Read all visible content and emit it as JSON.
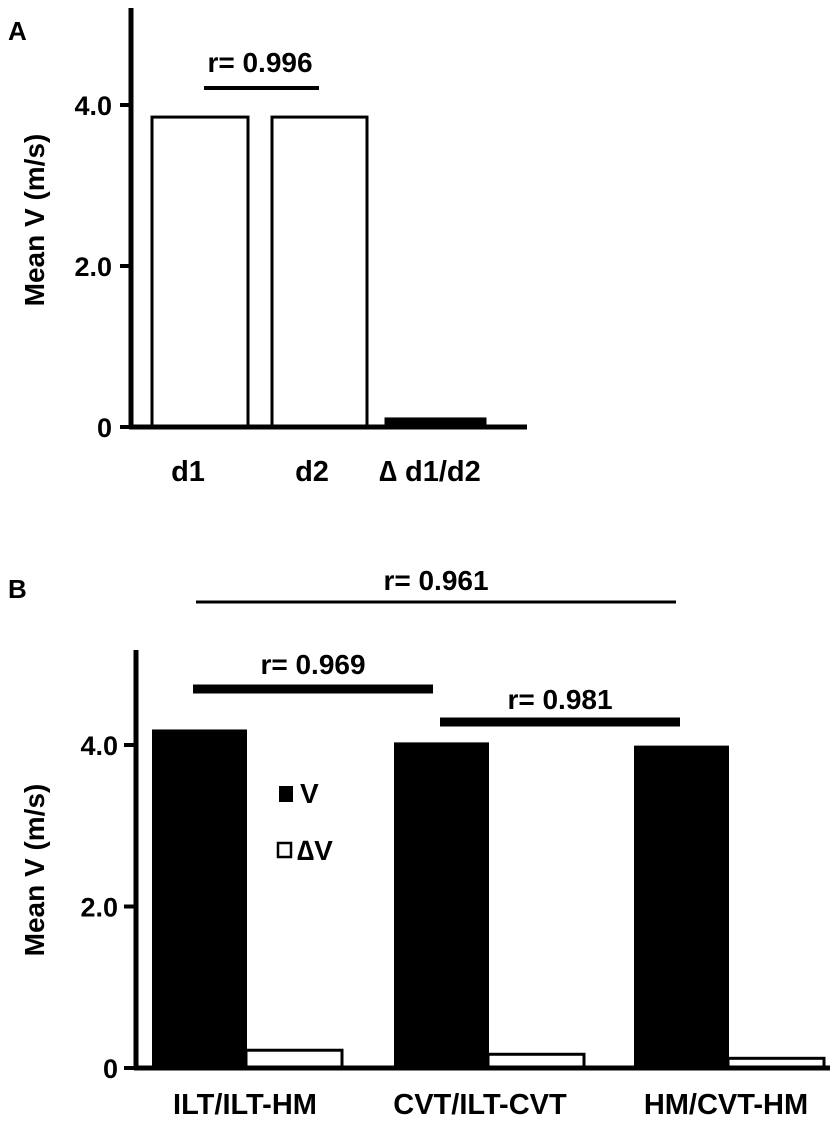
{
  "chart_data": [
    {
      "type": "bar",
      "panel_label": "A",
      "ylabel": "Mean V (m/s)",
      "ylim": [
        0,
        5.2
      ],
      "yticks": [
        {
          "value": 0,
          "label": "0"
        },
        {
          "value": 2.0,
          "label": "2.0"
        },
        {
          "value": 4.0,
          "label": "4.0"
        }
      ],
      "categories": [
        "d1",
        "d2",
        "∆ d1/d2"
      ],
      "bars": [
        {
          "category": "d1",
          "value": 3.85,
          "fill": "#ffffff"
        },
        {
          "category": "d2",
          "value": 3.85,
          "fill": "#ffffff"
        },
        {
          "category": "∆ d1/d2",
          "value": 0.1,
          "fill": "#000000"
        }
      ],
      "annotations": [
        {
          "text": "r= 0.996",
          "from": "d1",
          "to": "d2"
        }
      ],
      "legend": null,
      "grid": false
    },
    {
      "type": "bar",
      "panel_label": "B",
      "ylabel": "Mean V (m/s)",
      "ylim": [
        0,
        5.2
      ],
      "yticks": [
        {
          "value": 0,
          "label": "0"
        },
        {
          "value": 2.0,
          "label": "2.0"
        },
        {
          "value": 4.0,
          "label": "4.0"
        }
      ],
      "categories": [
        "ILT/ILT-HM",
        "CVT/ILT-CVT",
        "HM/CVT-HM"
      ],
      "series": [
        {
          "name": "V",
          "fill": "#000000",
          "values": [
            4.18,
            4.02,
            3.98
          ]
        },
        {
          "name": "∆V",
          "fill": "#ffffff",
          "values": [
            0.22,
            0.17,
            0.12
          ]
        }
      ],
      "annotations": [
        {
          "text": "r= 0.961",
          "from": "ILT/ILT-HM",
          "to": "HM/CVT-HM",
          "level": 0
        },
        {
          "text": "r= 0.969",
          "from": "ILT/ILT-HM",
          "to": "CVT/ILT-CVT",
          "level": 1
        },
        {
          "text": "r= 0.981",
          "from": "CVT/ILT-CVT",
          "to": "HM/CVT-HM",
          "level": 2
        }
      ],
      "legend": "upper-middle",
      "grid": false
    }
  ]
}
